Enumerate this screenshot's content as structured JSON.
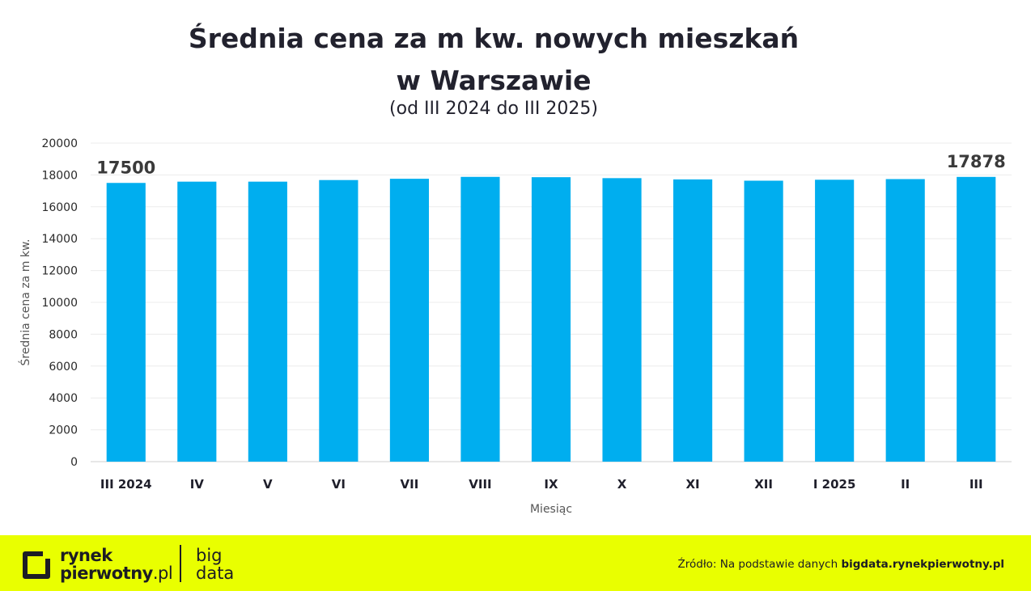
{
  "chart_data": {
    "type": "bar",
    "title_lines": [
      "Średnia cena za m kw. nowych mieszkań",
      "w Warszawie"
    ],
    "subtitle": "(od III 2024 do III 2025)",
    "xlabel": "Miesiąc",
    "ylabel": "Średnia cena za m kw.",
    "categories": [
      "III 2024",
      "IV",
      "V",
      "VI",
      "VII",
      "VIII",
      "IX",
      "X",
      "XI",
      "XII",
      "I 2025",
      "II",
      "III"
    ],
    "values": [
      17500,
      17580,
      17580,
      17680,
      17760,
      17880,
      17860,
      17800,
      17720,
      17640,
      17700,
      17740,
      17878
    ],
    "data_labels": [
      {
        "index": 0,
        "text": "17500"
      },
      {
        "index": 12,
        "text": "17878"
      }
    ],
    "ylim": [
      0,
      20000
    ],
    "yticks": [
      0,
      2000,
      4000,
      6000,
      8000,
      10000,
      12000,
      14000,
      16000,
      18000,
      20000
    ],
    "grid": true,
    "bar_color": "#00aeef"
  },
  "footer": {
    "logo_line1": "rynek",
    "logo_line2": "pierwotny",
    "logo_suffix": ".pl",
    "bigdata_line1": "big",
    "bigdata_line2": "data",
    "source_prefix": "Źródło: Na podstawie danych ",
    "source_link": "bigdata.rynekpierwotny.pl",
    "background": "#e9ff00"
  }
}
